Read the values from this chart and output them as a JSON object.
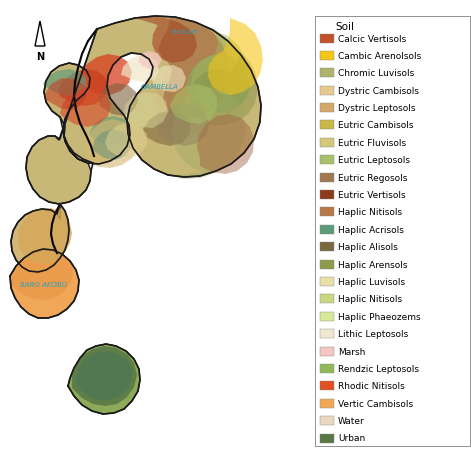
{
  "legend_title": "Soil",
  "legend_items": [
    {
      "label": "Calcic Vertisols",
      "color": "#C0522A"
    },
    {
      "label": "Cambic Arenolsols",
      "color": "#F5C518"
    },
    {
      "label": "Chromic Luvisols",
      "color": "#B0B46A"
    },
    {
      "label": "Dystric Cambisols",
      "color": "#E8C890"
    },
    {
      "label": "Dystric Leptosols",
      "color": "#D4A86A"
    },
    {
      "label": "Eutric Cambisols",
      "color": "#C8B848"
    },
    {
      "label": "Eutric Fluvisols",
      "color": "#D4C87A"
    },
    {
      "label": "Eutric Leptosols",
      "color": "#A8C06A"
    },
    {
      "label": "Eutric Regosols",
      "color": "#A07850"
    },
    {
      "label": "Eutric Vertisols",
      "color": "#8B3A1A"
    },
    {
      "label": "Haplic Nitisols",
      "color": "#B87848"
    },
    {
      "label": "Haplic Acrisols",
      "color": "#5C9C7A"
    },
    {
      "label": "Haplic Alisols",
      "color": "#7A6840"
    },
    {
      "label": "Haplic Arensols",
      "color": "#8C9C4A"
    },
    {
      "label": "Haplic Luvisols",
      "color": "#E8E0A8"
    },
    {
      "label": "Haplic Nitisols",
      "color": "#C8D880"
    },
    {
      "label": "Haplic Phaeozems",
      "color": "#D8E898"
    },
    {
      "label": "Lithic Leptosols",
      "color": "#F0E8D0"
    },
    {
      "label": "Marsh",
      "color": "#F4C8C0"
    },
    {
      "label": "Rendzic Leptosols",
      "color": "#90B858"
    },
    {
      "label": "Rhodic Nitisols",
      "color": "#E05020"
    },
    {
      "label": "Vertic Cambisols",
      "color": "#F0A858"
    },
    {
      "label": "Water",
      "color": "#E8D8C0"
    },
    {
      "label": "Urban",
      "color": "#5A7845"
    }
  ],
  "background_color": "#ffffff",
  "legend_fontsize": 6.5,
  "legend_title_fontsize": 7.5,
  "figsize": [
    4.71,
    4.77
  ],
  "dpi": 100
}
